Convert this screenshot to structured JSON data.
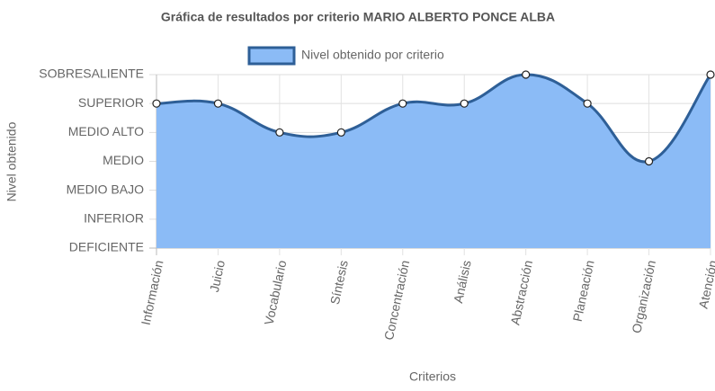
{
  "chart_data": {
    "type": "area",
    "title": "Gráfica de resultados por criterio MARIO ALBERTO PONCE ALBA",
    "x_label": "Criterios",
    "y_label": "Nivel obtenido",
    "categories": [
      "Información",
      "Juicio",
      "Vocabulario",
      "Síntesis",
      "Concentración",
      "Análisis",
      "Abstracción",
      "Planeación",
      "Organización",
      "Atención"
    ],
    "series": [
      {
        "name": "Nivel obtenido por criterio",
        "color": "#2e5f97",
        "fill": "#8bbbf6",
        "values": [
          5,
          5,
          4,
          4,
          5,
          5,
          6,
          5,
          3,
          6
        ]
      }
    ],
    "ylim": [
      0,
      6
    ],
    "yticks": [
      {
        "value": 0,
        "label": "DEFICIENTE"
      },
      {
        "value": 1,
        "label": "INFERIOR"
      },
      {
        "value": 2,
        "label": "MEDIO BAJO"
      },
      {
        "value": 3,
        "label": "MEDIO"
      },
      {
        "value": 4,
        "label": "MEDIO ALTO"
      },
      {
        "value": 5,
        "label": "SUPERIOR"
      },
      {
        "value": 6,
        "label": "SOBRESALIENTE"
      }
    ],
    "grid": true,
    "legend": "top"
  }
}
